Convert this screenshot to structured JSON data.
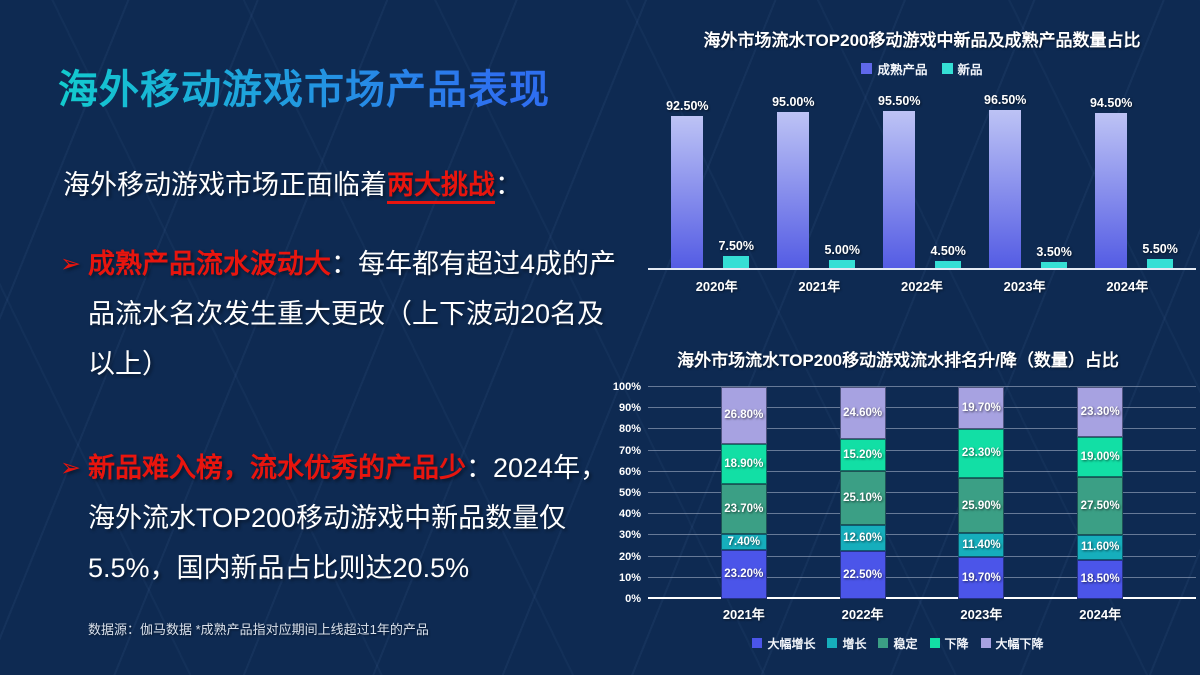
{
  "slide": {
    "title": "海外移动游戏市场产品表现",
    "intro": {
      "prefix": "海外移动游戏市场正面临着",
      "highlight": "两大挑战",
      "suffix": "："
    },
    "bullets": [
      {
        "marker": "➢",
        "highlight": "成熟产品流水波动大",
        "text": "：每年都有超过4成的产品流水名次发生重大更改（上下波动20名及以上）"
      },
      {
        "marker": "➢",
        "highlight": "新品难入榜，流水优秀的产品少",
        "text": "：2024年，海外流水TOP200移动游戏中新品数量仅5.5%，国内新品占比则达20.5%"
      }
    ],
    "footnote": "数据源：伽马数据 *成熟产品指对应期间上线超过1年的产品"
  },
  "colors": {
    "background": "#0e2a52",
    "slide_title_gradient_start": "#12cbce",
    "slide_title_gradient_end": "#2e6ff0",
    "accent_red": "#e8150e",
    "text": "#ffffff",
    "footnote_text": "#d9e1ec",
    "axis_line": "#e4eaf4",
    "gridline": "rgba(190,200,220,0.5)"
  },
  "chart_data": [
    {
      "type": "bar",
      "title": "海外市场流水TOP200移动游戏中新品及成熟产品数量占比",
      "categories": [
        "2020年",
        "2021年",
        "2022年",
        "2023年",
        "2024年"
      ],
      "series": [
        {
          "name": "成熟产品",
          "key": "mature",
          "color": "#5f68ea",
          "gradient": [
            "#bdc3f5",
            "#545ce4"
          ],
          "values": [
            92.5,
            95.0,
            95.5,
            96.5,
            94.5
          ]
        },
        {
          "name": "新品",
          "key": "new",
          "color": "#35dfd5",
          "values": [
            7.5,
            5.0,
            4.5,
            3.5,
            5.5
          ]
        }
      ],
      "value_labels": "two-decimal percent",
      "ylim": [
        0,
        100
      ],
      "grid": false,
      "legend_position": "top"
    },
    {
      "type": "bar",
      "stacked": true,
      "title": "海外市场流水TOP200移动游戏流水排名升/降（数量）占比",
      "categories": [
        "2021年",
        "2022年",
        "2023年",
        "2024年"
      ],
      "series": [
        {
          "name": "大幅增长",
          "key": "big-increase",
          "color": "#4b55e9",
          "values": [
            23.2,
            22.5,
            19.7,
            18.5
          ]
        },
        {
          "name": "增长",
          "key": "increase",
          "color": "#16aebc",
          "values": [
            7.4,
            12.6,
            11.4,
            11.6
          ]
        },
        {
          "name": "稳定",
          "key": "stable",
          "color": "#3b9f85",
          "values": [
            23.7,
            25.1,
            25.9,
            27.5
          ]
        },
        {
          "name": "下降",
          "key": "decline",
          "color": "#12dfa5",
          "values": [
            18.9,
            15.2,
            23.3,
            19.0
          ]
        },
        {
          "name": "大幅下降",
          "key": "big-decline",
          "color": "#a7a2e1",
          "values": [
            26.8,
            24.6,
            19.7,
            23.3
          ]
        }
      ],
      "y_ticks": [
        "0%",
        "10%",
        "20%",
        "30%",
        "40%",
        "50%",
        "60%",
        "70%",
        "80%",
        "90%",
        "100%"
      ],
      "ylim": [
        0,
        100
      ],
      "grid": true,
      "legend_position": "bottom"
    }
  ]
}
